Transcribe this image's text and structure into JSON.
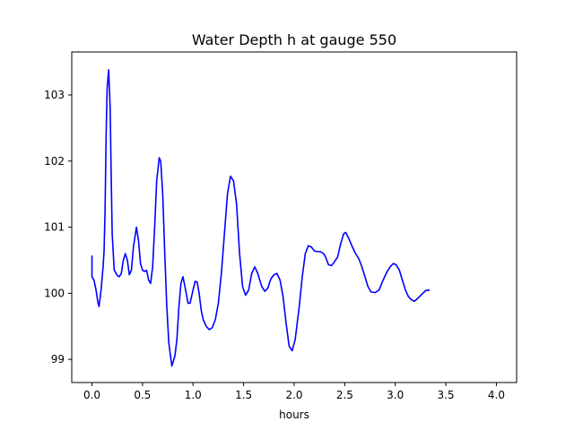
{
  "chart_data": {
    "type": "line",
    "title": "Water Depth h at gauge 550",
    "xlabel": "hours",
    "ylabel": "",
    "xlim": [
      -0.2,
      4.2
    ],
    "ylim": [
      98.65,
      103.65
    ],
    "xticks": [
      "0.0",
      "0.5",
      "1.0",
      "1.5",
      "2.0",
      "2.5",
      "3.0",
      "3.5",
      "4.0"
    ],
    "yticks": [
      "99",
      "100",
      "101",
      "102",
      "103"
    ],
    "grid": false,
    "legend": "none",
    "series": [
      {
        "color": "#0000ff",
        "points": [
          [
            0.0,
            100.57
          ],
          [
            0.0,
            100.25
          ],
          [
            0.02,
            100.2
          ],
          [
            0.04,
            100.05
          ],
          [
            0.06,
            99.85
          ],
          [
            0.07,
            99.8
          ],
          [
            0.09,
            100.05
          ],
          [
            0.11,
            100.4
          ],
          [
            0.12,
            100.65
          ],
          [
            0.13,
            101.3
          ],
          [
            0.14,
            102.4
          ],
          [
            0.15,
            103.1
          ],
          [
            0.165,
            103.38
          ],
          [
            0.18,
            102.8
          ],
          [
            0.19,
            101.8
          ],
          [
            0.2,
            100.9
          ],
          [
            0.22,
            100.35
          ],
          [
            0.25,
            100.27
          ],
          [
            0.27,
            100.25
          ],
          [
            0.29,
            100.3
          ],
          [
            0.31,
            100.5
          ],
          [
            0.33,
            100.6
          ],
          [
            0.35,
            100.5
          ],
          [
            0.37,
            100.28
          ],
          [
            0.39,
            100.35
          ],
          [
            0.41,
            100.7
          ],
          [
            0.44,
            101.0
          ],
          [
            0.46,
            100.8
          ],
          [
            0.48,
            100.45
          ],
          [
            0.5,
            100.35
          ],
          [
            0.52,
            100.33
          ],
          [
            0.54,
            100.35
          ],
          [
            0.56,
            100.2
          ],
          [
            0.58,
            100.15
          ],
          [
            0.6,
            100.4
          ],
          [
            0.62,
            101.0
          ],
          [
            0.64,
            101.7
          ],
          [
            0.665,
            102.05
          ],
          [
            0.68,
            102.0
          ],
          [
            0.7,
            101.5
          ],
          [
            0.72,
            100.6
          ],
          [
            0.74,
            99.8
          ],
          [
            0.76,
            99.25
          ],
          [
            0.79,
            98.9
          ],
          [
            0.82,
            99.05
          ],
          [
            0.84,
            99.3
          ],
          [
            0.86,
            99.8
          ],
          [
            0.88,
            100.15
          ],
          [
            0.9,
            100.25
          ],
          [
            0.92,
            100.1
          ],
          [
            0.95,
            99.85
          ],
          [
            0.97,
            99.85
          ],
          [
            1.0,
            100.05
          ],
          [
            1.02,
            100.18
          ],
          [
            1.04,
            100.17
          ],
          [
            1.06,
            100.0
          ],
          [
            1.08,
            99.75
          ],
          [
            1.1,
            99.6
          ],
          [
            1.13,
            99.5
          ],
          [
            1.16,
            99.45
          ],
          [
            1.19,
            99.48
          ],
          [
            1.22,
            99.6
          ],
          [
            1.25,
            99.85
          ],
          [
            1.28,
            100.3
          ],
          [
            1.31,
            100.9
          ],
          [
            1.34,
            101.5
          ],
          [
            1.37,
            101.77
          ],
          [
            1.4,
            101.7
          ],
          [
            1.43,
            101.35
          ],
          [
            1.46,
            100.6
          ],
          [
            1.49,
            100.1
          ],
          [
            1.52,
            99.97
          ],
          [
            1.55,
            100.05
          ],
          [
            1.58,
            100.3
          ],
          [
            1.61,
            100.4
          ],
          [
            1.64,
            100.3
          ],
          [
            1.68,
            100.1
          ],
          [
            1.71,
            100.03
          ],
          [
            1.74,
            100.08
          ],
          [
            1.77,
            100.22
          ],
          [
            1.8,
            100.28
          ],
          [
            1.83,
            100.3
          ],
          [
            1.86,
            100.2
          ],
          [
            1.89,
            99.95
          ],
          [
            1.92,
            99.55
          ],
          [
            1.95,
            99.2
          ],
          [
            1.98,
            99.13
          ],
          [
            2.01,
            99.3
          ],
          [
            2.05,
            99.8
          ],
          [
            2.08,
            100.25
          ],
          [
            2.11,
            100.6
          ],
          [
            2.14,
            100.72
          ],
          [
            2.17,
            100.7
          ],
          [
            2.2,
            100.64
          ],
          [
            2.23,
            100.63
          ],
          [
            2.26,
            100.63
          ],
          [
            2.29,
            100.6
          ],
          [
            2.31,
            100.55
          ],
          [
            2.34,
            100.43
          ],
          [
            2.37,
            100.42
          ],
          [
            2.4,
            100.48
          ],
          [
            2.43,
            100.55
          ],
          [
            2.46,
            100.75
          ],
          [
            2.49,
            100.9
          ],
          [
            2.51,
            100.92
          ],
          [
            2.54,
            100.83
          ],
          [
            2.57,
            100.72
          ],
          [
            2.6,
            100.62
          ],
          [
            2.64,
            100.52
          ],
          [
            2.67,
            100.4
          ],
          [
            2.7,
            100.25
          ],
          [
            2.73,
            100.1
          ],
          [
            2.76,
            100.02
          ],
          [
            2.8,
            100.01
          ],
          [
            2.84,
            100.05
          ],
          [
            2.88,
            100.2
          ],
          [
            2.92,
            100.33
          ],
          [
            2.95,
            100.4
          ],
          [
            2.98,
            100.45
          ],
          [
            3.01,
            100.43
          ],
          [
            3.04,
            100.35
          ],
          [
            3.07,
            100.2
          ],
          [
            3.1,
            100.05
          ],
          [
            3.13,
            99.95
          ],
          [
            3.16,
            99.9
          ],
          [
            3.19,
            99.88
          ],
          [
            3.22,
            99.92
          ],
          [
            3.26,
            99.98
          ],
          [
            3.3,
            100.04
          ],
          [
            3.34,
            100.05
          ]
        ]
      }
    ]
  }
}
